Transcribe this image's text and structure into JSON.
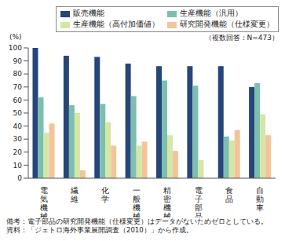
{
  "chart_data": {
    "type": "bar",
    "y_label": "(%)",
    "annotations": [
      "（複数回答：N=473）"
    ],
    "notes": [
      "備考：電子部品の研究開発機能（仕様変更）はデータがないためゼロとしている。",
      "資料：「ジェトロ海外事業展開調査（2010）」から作成。"
    ],
    "categories": [
      "電気機械",
      "繊維",
      "化学",
      "一般機械",
      "精密機械",
      "電子部品",
      "食品",
      "自動車"
    ],
    "series": [
      {
        "name": "販売機能",
        "color": "#26457a",
        "values": [
          100,
          94,
          93,
          88,
          86,
          86,
          86,
          70
        ]
      },
      {
        "name": "生産機能（汎用）",
        "color": "#7cbfae",
        "values": [
          62,
          56,
          57,
          63,
          75,
          71,
          32,
          73
        ]
      },
      {
        "name": "生産機能（高付加価値）",
        "color": "#d5e6a6",
        "values": [
          35,
          50,
          43,
          25,
          33,
          14,
          29,
          49
        ]
      },
      {
        "name": "研究開発機能（仕様変更）",
        "color": "#f3c49b",
        "values": [
          42,
          6,
          25,
          28,
          21,
          0,
          37,
          33
        ]
      }
    ],
    "ylim": [
      0,
      100
    ],
    "yticks": [
      0,
      10,
      20,
      30,
      40,
      50,
      60,
      70,
      80,
      90,
      100
    ],
    "grid": false,
    "legend": "top right"
  }
}
